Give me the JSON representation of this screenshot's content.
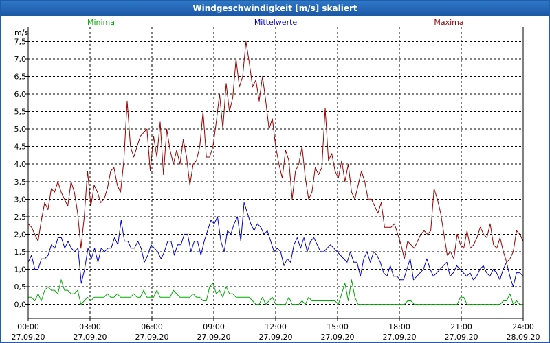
{
  "window": {
    "title": "Windgeschwindigkeit [m/s] skaliert"
  },
  "chart_data": {
    "type": "line",
    "title": "Windgeschwindigkeit [m/s] skaliert",
    "ylabel": "m/s",
    "xlabel": "",
    "ylim": [
      -0.4,
      7.9
    ],
    "xlim": [
      0,
      24
    ],
    "yticks": [
      0.0,
      0.5,
      1.0,
      1.5,
      2.0,
      2.5,
      3.0,
      3.5,
      4.0,
      4.5,
      5.0,
      5.5,
      6.0,
      6.5,
      7.0,
      7.5
    ],
    "ytick_labels": [
      "0,0",
      "0,5",
      "1,0",
      "1,5",
      "2,0",
      "2,5",
      "3,0",
      "3,5",
      "4,0",
      "4,5",
      "5,0",
      "5,5",
      "6,0",
      "6,5",
      "7,0",
      "7,5"
    ],
    "xticks": [
      0,
      3,
      6,
      9,
      12,
      15,
      18,
      21,
      24
    ],
    "xtick_labels": [
      {
        "time": "00:00",
        "date": "27.09.20"
      },
      {
        "time": "03:00",
        "date": "27.09.20"
      },
      {
        "time": "06:00",
        "date": "27.09.20"
      },
      {
        "time": "09:00",
        "date": "27.09.20"
      },
      {
        "time": "12:00",
        "date": "27.09.20"
      },
      {
        "time": "15:00",
        "date": "27.09.20"
      },
      {
        "time": "18:00",
        "date": "27.09.20"
      },
      {
        "time": "21:00",
        "date": "27.09.20"
      },
      {
        "time": "24:00",
        "date": "28.09.20"
      }
    ],
    "grid": true,
    "legend_position": "top",
    "series": [
      {
        "name": "Minima",
        "color": "#00aa00",
        "values": [
          0.2,
          0.2,
          0.1,
          0.3,
          0.1,
          0.4,
          0.5,
          0.4,
          0.4,
          0.3,
          0.7,
          0.4,
          0.4,
          0.3,
          0.3,
          0.4,
          0.0,
          0.1,
          0.2,
          0.1,
          0.2,
          0.2,
          0.2,
          0.2,
          0.3,
          0.2,
          0.2,
          0.3,
          0.2,
          0.2,
          0.2,
          0.2,
          0.3,
          0.2,
          0.2,
          0.4,
          0.2,
          0.2,
          0.2,
          0.4,
          0.2,
          0.2,
          0.2,
          0.2,
          0.4,
          0.3,
          0.2,
          0.2,
          0.2,
          0.2,
          0.3,
          0.2,
          0.2,
          0.1,
          0.1,
          0.5,
          0.6,
          0.3,
          0.4,
          0.2,
          0.5,
          0.3,
          0.3,
          0.2,
          0.2,
          0.2,
          0.2,
          0.2,
          0.1,
          0.0,
          0.0,
          0.2,
          0.0,
          0.1,
          0.2,
          0.0,
          0.0,
          0.0,
          0.0,
          0.2,
          0.0,
          0.0,
          0.0,
          0.1,
          0.0,
          0.2,
          0.1,
          0.1,
          0.1,
          0.1,
          0.1,
          0.1,
          0.1,
          0.1,
          0.0,
          0.3,
          0.6,
          0.1,
          0.7,
          0.2,
          0.0,
          0.0,
          0.0,
          0.0,
          0.0,
          0.0,
          0.0,
          0.0,
          0.0,
          0.0,
          0.0,
          0.0,
          0.0,
          0.0,
          0.0,
          0.1,
          0.1,
          0.0,
          0.0,
          0.0,
          0.0,
          0.0,
          0.0,
          0.0,
          0.0,
          0.0,
          0.0,
          0.0,
          0.0,
          0.0,
          0.0,
          0.2,
          0.2,
          0.0,
          0.0,
          0.0,
          0.0,
          0.0,
          0.0,
          0.0,
          0.0,
          0.0,
          0.0,
          0.0,
          0.1,
          0.1,
          0.3,
          0.0,
          0.1,
          0.0,
          0.0
        ]
      },
      {
        "name": "Mittelwerte",
        "color": "#0000cc",
        "values": [
          1.2,
          1.4,
          1.0,
          1.0,
          1.3,
          1.3,
          1.4,
          1.7,
          1.6,
          1.9,
          1.9,
          1.6,
          1.8,
          1.6,
          1.5,
          1.6,
          0.6,
          1.0,
          1.6,
          1.3,
          1.6,
          1.2,
          1.6,
          1.5,
          1.6,
          1.6,
          1.9,
          1.7,
          2.4,
          1.8,
          1.8,
          1.6,
          1.6,
          1.8,
          1.6,
          1.2,
          1.4,
          1.7,
          1.6,
          1.5,
          1.3,
          1.5,
          1.8,
          1.8,
          1.4,
          1.7,
          1.7,
          2.0,
          2.0,
          1.5,
          1.8,
          1.8,
          1.4,
          1.8,
          2.1,
          2.4,
          2.3,
          2.5,
          1.8,
          1.5,
          2.1,
          2.0,
          2.3,
          2.5,
          1.8,
          2.9,
          2.6,
          2.3,
          2.1,
          2.3,
          2.2,
          2.0,
          2.1,
          1.8,
          1.5,
          1.6,
          1.5,
          1.1,
          1.3,
          1.2,
          1.7,
          1.9,
          1.6,
          1.9,
          1.5,
          1.8,
          1.9,
          1.7,
          1.5,
          1.5,
          1.6,
          1.7,
          1.6,
          1.5,
          1.4,
          1.3,
          1.2,
          1.5,
          1.2,
          1.2,
          0.8,
          1.3,
          1.5,
          1.2,
          1.5,
          1.4,
          1.2,
          0.9,
          0.8,
          1.1,
          0.8,
          0.8,
          0.7,
          0.7,
          1.0,
          1.3,
          0.7,
          0.8,
          0.9,
          1.0,
          1.3,
          1.0,
          0.8,
          0.9,
          1.0,
          1.1,
          1.2,
          0.8,
          0.9,
          1.1,
          1.0,
          0.9,
          0.8,
          0.9,
          0.7,
          0.8,
          1.0,
          1.1,
          0.9,
          0.8,
          1.0,
          0.9,
          0.7,
          1.0,
          1.2,
          0.8,
          0.5,
          0.9,
          0.9,
          0.8
        ]
      },
      {
        "name": "Maxima",
        "color": "#990000",
        "values": [
          2.3,
          2.2,
          2.0,
          1.8,
          2.4,
          2.9,
          2.7,
          3.3,
          3.2,
          3.5,
          3.2,
          3.0,
          2.8,
          3.5,
          3.2,
          2.6,
          1.6,
          2.5,
          3.8,
          2.8,
          3.4,
          3.2,
          2.9,
          3.0,
          3.3,
          3.8,
          3.9,
          3.4,
          3.2,
          4.1,
          5.8,
          4.5,
          4.2,
          4.5,
          4.8,
          4.9,
          5.0,
          3.8,
          4.8,
          4.2,
          5.2,
          3.7,
          5.0,
          4.4,
          4.0,
          4.4,
          4.0,
          4.7,
          4.2,
          3.4,
          4.0,
          4.1,
          4.5,
          5.5,
          4.2,
          4.2,
          4.5,
          5.2,
          6.0,
          5.0,
          6.3,
          5.5,
          5.9,
          7.0,
          6.2,
          6.5,
          7.5,
          6.9,
          6.2,
          6.4,
          5.8,
          6.5,
          5.8,
          5.0,
          5.3,
          4.5,
          4.0,
          3.6,
          4.4,
          4.1,
          3.0,
          3.8,
          4.0,
          4.5,
          3.6,
          3.0,
          3.2,
          3.9,
          3.7,
          3.9,
          5.6,
          4.1,
          4.3,
          3.8,
          3.6,
          4.1,
          3.5,
          4.0,
          3.2,
          3.0,
          3.4,
          3.8,
          3.5,
          3.0,
          3.0,
          2.8,
          2.6,
          2.9,
          2.2,
          2.2,
          2.2,
          2.3,
          2.0,
          1.7,
          1.3,
          1.8,
          1.7,
          1.6,
          1.8,
          2.0,
          2.1,
          2.0,
          2.1,
          3.3,
          3.0,
          2.6,
          2.0,
          1.4,
          1.5,
          1.3,
          2.0,
          1.7,
          1.6,
          2.1,
          1.6,
          1.7,
          1.9,
          2.2,
          2.0,
          1.9,
          2.3,
          1.7,
          1.6,
          1.9,
          1.5,
          1.2,
          1.3,
          1.5,
          2.1,
          2.0,
          1.8
        ]
      }
    ]
  }
}
